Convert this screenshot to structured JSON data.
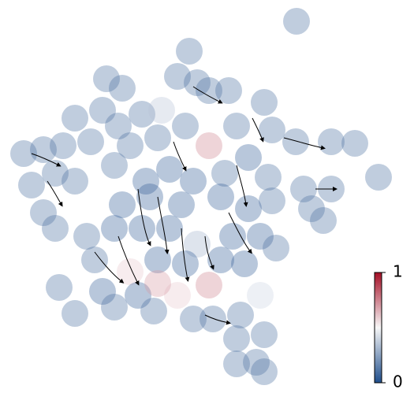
{
  "chart_data": {
    "type": "scatter",
    "x": [
      73.2,
      25,
      29,
      46,
      43,
      48,
      51,
      56,
      65,
      17,
      24,
      34,
      39,
      28,
      4,
      9,
      14,
      21,
      31,
      38,
      45,
      51,
      58,
      67,
      73,
      82,
      88,
      94,
      6,
      12,
      17,
      27,
      35,
      41,
      47,
      55,
      61,
      66,
      75,
      82,
      77,
      80,
      9,
      12,
      29,
      36,
      44,
      54,
      61,
      67,
      20,
      27,
      34,
      41,
      48,
      57,
      64,
      68,
      22,
      31,
      38,
      45,
      54,
      60,
      51,
      64,
      13,
      24,
      33,
      43,
      38,
      17,
      27,
      37,
      47,
      52,
      59,
      65,
      58,
      63,
      58,
      65
    ],
    "y": [
      94.6,
      80,
      77.6,
      87,
      80.6,
      79,
      77,
      77,
      74,
      70,
      72,
      71,
      72,
      68,
      61,
      62,
      63,
      64,
      63,
      65,
      68,
      63,
      68,
      67,
      64,
      64,
      63.6,
      55,
      53,
      56,
      54,
      58,
      54,
      57,
      54,
      56,
      60,
      55,
      52,
      52,
      47,
      44,
      46,
      42,
      48,
      50,
      48,
      50,
      47,
      49,
      40,
      42,
      42,
      42,
      38,
      40,
      40,
      37,
      34,
      31,
      34,
      33,
      34,
      33,
      27.6,
      25,
      27,
      26,
      25,
      25,
      28,
      20.4,
      22,
      21,
      19,
      19,
      20,
      15,
      14,
      8,
      7.6,
      5.6
    ],
    "c": [
      0.1,
      0.1,
      0.1,
      0.1,
      0.1,
      0.1,
      0.1,
      0.1,
      0.1,
      0.1,
      0.1,
      0.1,
      0.35,
      0.1,
      0.1,
      0.1,
      0.1,
      0.1,
      0.1,
      0.1,
      0.1,
      0.75,
      0.1,
      0.1,
      0.1,
      0.1,
      0.1,
      0.1,
      0.1,
      0.1,
      0.1,
      0.1,
      0.05,
      0.05,
      0.05,
      0.1,
      0.05,
      0.1,
      0.1,
      0.1,
      0.1,
      0.1,
      0.1,
      0.1,
      0.05,
      0.05,
      0.05,
      0.05,
      0.05,
      0.1,
      0.1,
      0.05,
      0.05,
      0.05,
      0.3,
      0.05,
      0.05,
      0.1,
      0.1,
      0.6,
      0.05,
      0.05,
      0.05,
      0.05,
      0.75,
      0.4,
      0.1,
      0.05,
      0.05,
      0.6,
      0.7,
      0.1,
      0.1,
      0.1,
      0.1,
      0.1,
      0.1,
      0.1,
      0.1,
      0.1,
      0.1,
      0.1
    ],
    "xlim": [
      0,
      96
    ],
    "ylim": [
      0,
      98
    ],
    "clim": [
      0,
      1
    ],
    "cticks": [
      0,
      1
    ],
    "colormap": [
      "#1f4e8c",
      "#f7f7f7",
      "#a50f26"
    ],
    "alpha": 0.35
  }
}
